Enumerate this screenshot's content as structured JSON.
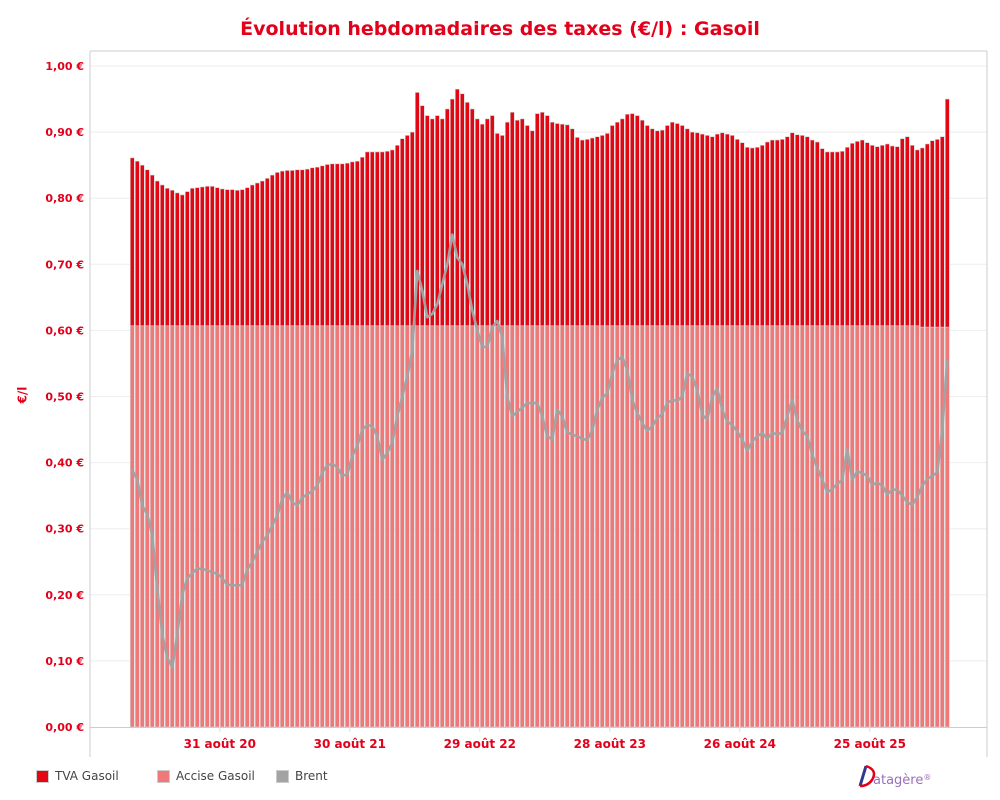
{
  "title": "Évolution hebdomadaires des taxes (€/l) : Gasoil",
  "logo_text": "Datagère®",
  "colors": {
    "tva": "#e30613",
    "accise": "#f07878",
    "brent": "#a3a3a3",
    "text": "#e2001a"
  },
  "chart_data": {
    "type": "bar",
    "stacked": true,
    "title": "Évolution hebdomadaires des taxes (€/l) : Gasoil",
    "ylabel": "€/l",
    "xlabel": "",
    "ylim": [
      0,
      1.0
    ],
    "grid": true,
    "legend_position": "bottom-left",
    "y_ticks": [
      {
        "value": 0.0,
        "label": "0,00 €"
      },
      {
        "value": 0.1,
        "label": "0,10 €"
      },
      {
        "value": 0.2,
        "label": "0,20 €"
      },
      {
        "value": 0.3,
        "label": "0,30 €"
      },
      {
        "value": 0.4,
        "label": "0,40 €"
      },
      {
        "value": 0.5,
        "label": "0,50 €"
      },
      {
        "value": 0.6,
        "label": "0,60 €"
      },
      {
        "value": 0.7,
        "label": "0,70 €"
      },
      {
        "value": 0.8,
        "label": "0,80 €"
      },
      {
        "value": 0.9,
        "label": "0,90 €"
      },
      {
        "value": 1.0,
        "label": "1,00 €"
      }
    ],
    "x_ticks": [
      {
        "date": "2020-08-31",
        "label": "31 août 20"
      },
      {
        "date": "2021-08-30",
        "label": "30 août 21"
      },
      {
        "date": "2022-08-29",
        "label": "29 août 22"
      },
      {
        "date": "2023-08-28",
        "label": "28 août 23"
      },
      {
        "date": "2024-08-26",
        "label": "26 août 24"
      },
      {
        "date": "2025-08-25",
        "label": "25 août 25"
      }
    ],
    "x": [
      "2019-12-30",
      "2020-01-13",
      "2020-01-27",
      "2020-02-10",
      "2020-02-24",
      "2020-03-09",
      "2020-03-23",
      "2020-04-06",
      "2020-04-20",
      "2020-05-04",
      "2020-05-18",
      "2020-06-01",
      "2020-06-15",
      "2020-06-29",
      "2020-07-13",
      "2020-07-27",
      "2020-08-10",
      "2020-08-24",
      "2020-09-07",
      "2020-09-21",
      "2020-10-05",
      "2020-10-19",
      "2020-11-02",
      "2020-11-16",
      "2020-11-30",
      "2020-12-14",
      "2020-12-28",
      "2021-01-11",
      "2021-01-25",
      "2021-02-08",
      "2021-02-22",
      "2021-03-08",
      "2021-03-22",
      "2021-04-05",
      "2021-04-19",
      "2021-05-03",
      "2021-05-17",
      "2021-05-31",
      "2021-06-14",
      "2021-06-28",
      "2021-07-12",
      "2021-07-26",
      "2021-08-09",
      "2021-08-23",
      "2021-09-06",
      "2021-09-20",
      "2021-10-04",
      "2021-10-18",
      "2021-11-01",
      "2021-11-15",
      "2021-11-29",
      "2021-12-13",
      "2021-12-27",
      "2022-01-10",
      "2022-01-24",
      "2022-02-07",
      "2022-02-21",
      "2022-03-07",
      "2022-03-21",
      "2022-04-04",
      "2022-04-18",
      "2022-05-02",
      "2022-05-16",
      "2022-05-30",
      "2022-06-13",
      "2022-06-27",
      "2022-07-11",
      "2022-07-25",
      "2022-08-08",
      "2022-08-22",
      "2022-09-05",
      "2022-09-19",
      "2022-10-03",
      "2022-10-17",
      "2022-10-31",
      "2022-11-14",
      "2022-11-28",
      "2022-12-12",
      "2022-12-26",
      "2023-01-09",
      "2023-01-23",
      "2023-02-06",
      "2023-02-20",
      "2023-03-06",
      "2023-03-20",
      "2023-04-03",
      "2023-04-17",
      "2023-05-01",
      "2023-05-15",
      "2023-05-29",
      "2023-06-12",
      "2023-06-26",
      "2023-07-10",
      "2023-07-24",
      "2023-08-07",
      "2023-08-21",
      "2023-09-04",
      "2023-09-18",
      "2023-10-02",
      "2023-10-16",
      "2023-10-30",
      "2023-11-13",
      "2023-11-27",
      "2023-12-11",
      "2023-12-25",
      "2024-01-08",
      "2024-01-22",
      "2024-02-05",
      "2024-02-19",
      "2024-03-04",
      "2024-03-18",
      "2024-04-01",
      "2024-04-15",
      "2024-04-29",
      "2024-05-13",
      "2024-05-27",
      "2024-06-10",
      "2024-06-24",
      "2024-07-08",
      "2024-07-22",
      "2024-08-05",
      "2024-08-19",
      "2024-09-02",
      "2024-09-16",
      "2024-09-30",
      "2024-10-14",
      "2024-10-28",
      "2024-11-11",
      "2024-11-25",
      "2024-12-09",
      "2024-12-23",
      "2025-01-06",
      "2025-01-20",
      "2025-02-03",
      "2025-02-17",
      "2025-03-03",
      "2025-03-17",
      "2025-03-31",
      "2025-04-14",
      "2025-04-28",
      "2025-05-12",
      "2025-05-26",
      "2025-06-09",
      "2025-06-23",
      "2025-07-07",
      "2025-07-21",
      "2025-08-04",
      "2025-08-18",
      "2025-09-01",
      "2025-09-15",
      "2025-09-29",
      "2025-10-13",
      "2025-10-27",
      "2025-11-10",
      "2025-11-24",
      "2025-12-08",
      "2025-12-22",
      "2026-01-05",
      "2026-01-19",
      "2026-02-02",
      "2026-02-16",
      "2026-03-02",
      "2026-03-16",
      "2026-03-30"
    ],
    "series": [
      {
        "name": "Accise Gasoil",
        "kind": "bar",
        "values": [
          0.607,
          0.607,
          0.607,
          0.607,
          0.607,
          0.607,
          0.607,
          0.607,
          0.607,
          0.607,
          0.607,
          0.607,
          0.607,
          0.607,
          0.607,
          0.607,
          0.607,
          0.607,
          0.607,
          0.607,
          0.607,
          0.607,
          0.607,
          0.607,
          0.607,
          0.607,
          0.607,
          0.607,
          0.607,
          0.607,
          0.607,
          0.607,
          0.607,
          0.607,
          0.607,
          0.607,
          0.607,
          0.607,
          0.607,
          0.607,
          0.607,
          0.607,
          0.607,
          0.607,
          0.607,
          0.607,
          0.607,
          0.607,
          0.607,
          0.607,
          0.607,
          0.607,
          0.607,
          0.607,
          0.607,
          0.607,
          0.607,
          0.607,
          0.607,
          0.607,
          0.607,
          0.607,
          0.607,
          0.607,
          0.607,
          0.607,
          0.607,
          0.607,
          0.607,
          0.607,
          0.607,
          0.607,
          0.607,
          0.607,
          0.607,
          0.607,
          0.607,
          0.607,
          0.607,
          0.607,
          0.607,
          0.607,
          0.607,
          0.607,
          0.607,
          0.607,
          0.607,
          0.607,
          0.607,
          0.607,
          0.607,
          0.607,
          0.607,
          0.607,
          0.607,
          0.607,
          0.607,
          0.607,
          0.607,
          0.607,
          0.607,
          0.607,
          0.607,
          0.607,
          0.607,
          0.607,
          0.607,
          0.607,
          0.607,
          0.607,
          0.607,
          0.607,
          0.607,
          0.607,
          0.607,
          0.607,
          0.607,
          0.607,
          0.607,
          0.607,
          0.607,
          0.607,
          0.607,
          0.607,
          0.607,
          0.607,
          0.607,
          0.607,
          0.607,
          0.607,
          0.607,
          0.607,
          0.607,
          0.607,
          0.607,
          0.607,
          0.607,
          0.607,
          0.607,
          0.607,
          0.607,
          0.607,
          0.607,
          0.607,
          0.607,
          0.607,
          0.607,
          0.607,
          0.607,
          0.607,
          0.607,
          0.607,
          0.607,
          0.607,
          0.607,
          0.607,
          0.607,
          0.607,
          0.605,
          0.605,
          0.605,
          0.605,
          0.605,
          0.605
        ]
      },
      {
        "name": "TVA Gasoil",
        "kind": "bar",
        "values": [
          0.254,
          0.249,
          0.243,
          0.236,
          0.228,
          0.219,
          0.213,
          0.208,
          0.205,
          0.201,
          0.198,
          0.203,
          0.208,
          0.209,
          0.21,
          0.211,
          0.211,
          0.209,
          0.207,
          0.206,
          0.206,
          0.205,
          0.206,
          0.209,
          0.213,
          0.216,
          0.219,
          0.223,
          0.228,
          0.232,
          0.234,
          0.235,
          0.235,
          0.236,
          0.236,
          0.237,
          0.239,
          0.24,
          0.242,
          0.244,
          0.245,
          0.245,
          0.245,
          0.246,
          0.248,
          0.249,
          0.255,
          0.263,
          0.263,
          0.263,
          0.263,
          0.264,
          0.266,
          0.273,
          0.283,
          0.288,
          0.293,
          0.353,
          0.333,
          0.318,
          0.313,
          0.318,
          0.313,
          0.328,
          0.343,
          0.358,
          0.351,
          0.338,
          0.328,
          0.313,
          0.305,
          0.313,
          0.318,
          0.291,
          0.288,
          0.308,
          0.323,
          0.311,
          0.313,
          0.303,
          0.295,
          0.321,
          0.323,
          0.318,
          0.308,
          0.306,
          0.305,
          0.304,
          0.298,
          0.285,
          0.281,
          0.282,
          0.284,
          0.286,
          0.288,
          0.291,
          0.303,
          0.308,
          0.313,
          0.32,
          0.321,
          0.318,
          0.311,
          0.303,
          0.298,
          0.295,
          0.296,
          0.303,
          0.308,
          0.306,
          0.303,
          0.298,
          0.293,
          0.292,
          0.29,
          0.288,
          0.286,
          0.29,
          0.292,
          0.29,
          0.288,
          0.282,
          0.277,
          0.27,
          0.269,
          0.27,
          0.273,
          0.278,
          0.281,
          0.281,
          0.282,
          0.286,
          0.292,
          0.289,
          0.288,
          0.286,
          0.281,
          0.278,
          0.268,
          0.263,
          0.263,
          0.263,
          0.264,
          0.27,
          0.276,
          0.279,
          0.281,
          0.277,
          0.273,
          0.271,
          0.273,
          0.275,
          0.272,
          0.271,
          0.283,
          0.286,
          0.273,
          0.266,
          0.271,
          0.277,
          0.282,
          0.284,
          0.288,
          0.345
        ]
      },
      {
        "name": "Brent",
        "kind": "line",
        "values": [
          0.389,
          0.374,
          0.335,
          0.322,
          0.29,
          0.21,
          0.14,
          0.105,
          0.09,
          0.14,
          0.2,
          0.225,
          0.233,
          0.24,
          0.239,
          0.237,
          0.234,
          0.232,
          0.225,
          0.215,
          0.215,
          0.214,
          0.215,
          0.238,
          0.25,
          0.265,
          0.28,
          0.29,
          0.305,
          0.32,
          0.345,
          0.355,
          0.34,
          0.335,
          0.347,
          0.352,
          0.357,
          0.365,
          0.385,
          0.396,
          0.398,
          0.393,
          0.38,
          0.382,
          0.41,
          0.425,
          0.45,
          0.457,
          0.455,
          0.44,
          0.404,
          0.415,
          0.43,
          0.47,
          0.5,
          0.53,
          0.57,
          0.69,
          0.66,
          0.62,
          0.625,
          0.64,
          0.67,
          0.7,
          0.745,
          0.71,
          0.7,
          0.67,
          0.63,
          0.6,
          0.575,
          0.575,
          0.605,
          0.614,
          0.59,
          0.5,
          0.47,
          0.477,
          0.483,
          0.49,
          0.49,
          0.49,
          0.47,
          0.44,
          0.435,
          0.48,
          0.47,
          0.446,
          0.442,
          0.44,
          0.436,
          0.434,
          0.449,
          0.48,
          0.498,
          0.505,
          0.535,
          0.555,
          0.56,
          0.54,
          0.495,
          0.475,
          0.46,
          0.448,
          0.455,
          0.467,
          0.474,
          0.49,
          0.495,
          0.493,
          0.5,
          0.535,
          0.53,
          0.51,
          0.472,
          0.465,
          0.5,
          0.512,
          0.48,
          0.462,
          0.457,
          0.447,
          0.435,
          0.418,
          0.432,
          0.44,
          0.445,
          0.436,
          0.445,
          0.443,
          0.445,
          0.47,
          0.495,
          0.464,
          0.448,
          0.44,
          0.412,
          0.392,
          0.374,
          0.355,
          0.36,
          0.368,
          0.374,
          0.42,
          0.374,
          0.387,
          0.384,
          0.38,
          0.366,
          0.37,
          0.365,
          0.352,
          0.359,
          0.359,
          0.35,
          0.34,
          0.336,
          0.348,
          0.365,
          0.375,
          0.38,
          0.385,
          0.45,
          0.555
        ]
      }
    ]
  }
}
